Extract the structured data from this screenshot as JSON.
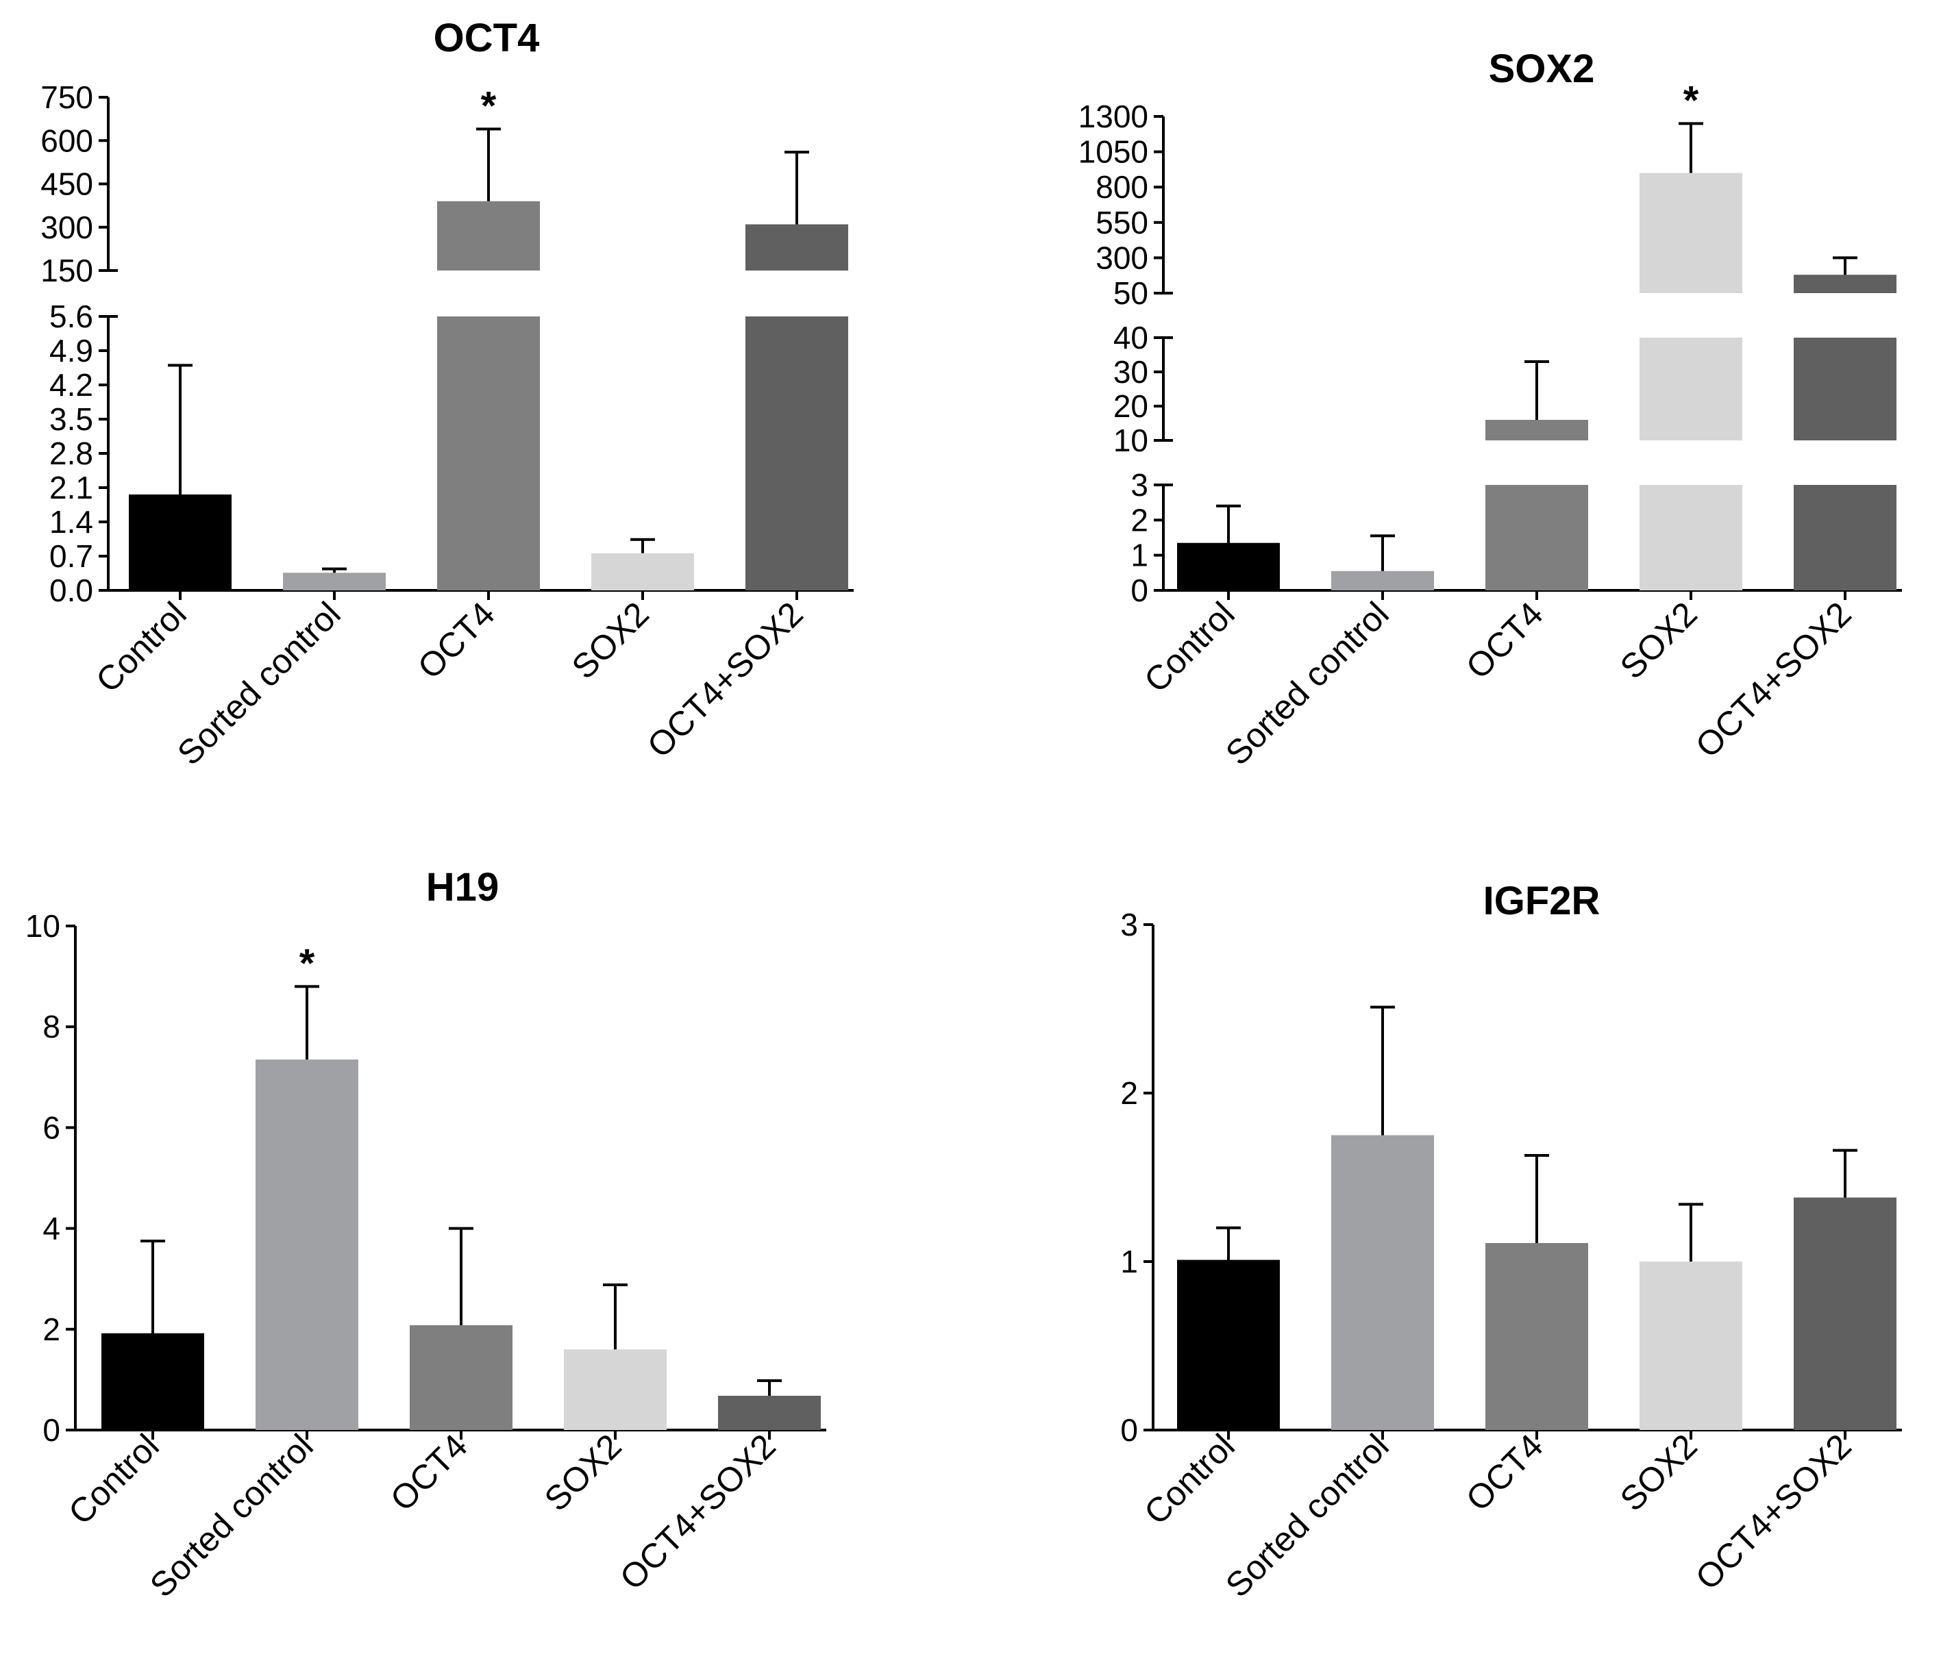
{
  "chart_data": [
    {
      "type": "bar",
      "title": "OCT4",
      "categories": [
        "Control",
        "Sorted control",
        "OCT4",
        "SOX2",
        "OCT4+SOX2"
      ],
      "values": [
        1.96,
        0.36,
        390,
        0.76,
        310
      ],
      "errors": [
        2.64,
        0.08,
        250,
        0.28,
        250
      ],
      "significant": [
        false,
        false,
        true,
        false,
        false
      ],
      "annotation": "*",
      "colors": [
        "#000000",
        "#a0a1a5",
        "#7f7f7f",
        "#d6d6d6",
        "#606060"
      ],
      "segments": [
        {
          "min": 0,
          "max": 5.6,
          "ticks": [
            0,
            0.7,
            1.4,
            2.1,
            2.8,
            3.5,
            4.2,
            4.9,
            5.6
          ],
          "tick_labels": [
            "0.0",
            "0.7",
            "1.4",
            "2.1",
            "2.8",
            "3.5",
            "4.2",
            "4.9",
            "5.6"
          ]
        },
        {
          "min": 150,
          "max": 750,
          "ticks": [
            150,
            300,
            450,
            600,
            750
          ],
          "tick_labels": [
            "150",
            "300",
            "450",
            "600",
            "750"
          ]
        }
      ],
      "xlabel": "",
      "ylabel": ""
    },
    {
      "type": "bar",
      "title": "SOX2",
      "categories": [
        "Control",
        "Sorted control",
        "OCT4",
        "SOX2",
        "OCT4+SOX2"
      ],
      "values": [
        1.35,
        0.55,
        16,
        900,
        180
      ],
      "errors": [
        1.05,
        1.0,
        17,
        350,
        120
      ],
      "significant": [
        false,
        false,
        false,
        true,
        false
      ],
      "annotation": "*",
      "colors": [
        "#000000",
        "#a0a1a5",
        "#7f7f7f",
        "#d6d6d6",
        "#606060"
      ],
      "segments": [
        {
          "min": 0,
          "max": 3,
          "ticks": [
            0,
            1,
            2,
            3
          ],
          "tick_labels": [
            "0",
            "1",
            "2",
            "3"
          ]
        },
        {
          "min": 10,
          "max": 40,
          "ticks": [
            10,
            20,
            30,
            40
          ],
          "tick_labels": [
            "10",
            "20",
            "30",
            "40"
          ]
        },
        {
          "min": 50,
          "max": 1300,
          "ticks": [
            50,
            300,
            550,
            800,
            1050,
            1300
          ],
          "tick_labels": [
            "50",
            "300",
            "550",
            "800",
            "1050",
            "1300"
          ]
        }
      ],
      "xlabel": "",
      "ylabel": ""
    },
    {
      "type": "bar",
      "title": "H19",
      "categories": [
        "Control",
        "Sorted control",
        "OCT4",
        "SOX2",
        "OCT4+SOX2"
      ],
      "values": [
        1.92,
        7.35,
        2.08,
        1.6,
        0.68
      ],
      "errors": [
        1.83,
        1.45,
        1.92,
        1.28,
        0.3
      ],
      "significant": [
        false,
        true,
        false,
        false,
        false
      ],
      "annotation": "*",
      "colors": [
        "#000000",
        "#a0a1a5",
        "#7f7f7f",
        "#d6d6d6",
        "#606060"
      ],
      "segments": [
        {
          "min": 0,
          "max": 10,
          "ticks": [
            0,
            2,
            4,
            6,
            8,
            10
          ],
          "tick_labels": [
            "0",
            "2",
            "4",
            "6",
            "8",
            "10"
          ]
        }
      ],
      "xlabel": "",
      "ylabel": ""
    },
    {
      "type": "bar",
      "title": "IGF2R",
      "categories": [
        "Control",
        "Sorted control",
        "OCT4",
        "SOX2",
        "OCT4+SOX2"
      ],
      "values": [
        1.01,
        1.75,
        1.11,
        1.0,
        1.38
      ],
      "errors": [
        0.19,
        0.76,
        0.52,
        0.34,
        0.28
      ],
      "significant": [
        false,
        false,
        false,
        false,
        false
      ],
      "annotation": "*",
      "colors": [
        "#000000",
        "#a0a1a5",
        "#7f7f7f",
        "#d6d6d6",
        "#606060"
      ],
      "segments": [
        {
          "min": 0,
          "max": 3,
          "ticks": [
            0,
            1,
            2,
            3
          ],
          "tick_labels": [
            "0",
            "1",
            "2",
            "3"
          ]
        }
      ],
      "xlabel": "",
      "ylabel": ""
    }
  ]
}
